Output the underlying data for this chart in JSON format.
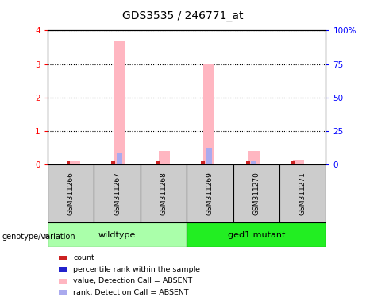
{
  "title": "GDS3535 / 246771_at",
  "samples": [
    "GSM311266",
    "GSM311267",
    "GSM311268",
    "GSM311269",
    "GSM311270",
    "GSM311271"
  ],
  "wildtype_label": "wildtype",
  "mutant_label": "ged1 mutant",
  "pink_bar_heights": [
    0.1,
    3.7,
    0.4,
    3.0,
    0.4,
    0.15
  ],
  "blue_bar_heights": [
    0.0,
    0.35,
    0.0,
    0.5,
    0.1,
    0.0
  ],
  "red_bar_heights": [
    0.1,
    0.1,
    0.1,
    0.1,
    0.1,
    0.1
  ],
  "ylim_left": [
    0,
    4
  ],
  "ylim_right": [
    0,
    100
  ],
  "yticks_left": [
    0,
    1,
    2,
    3,
    4
  ],
  "ytick_labels_right": [
    "0",
    "25",
    "50",
    "75",
    "100%"
  ],
  "pink_color": "#FFB6C1",
  "blue_color": "#AAAAEE",
  "red_color": "#CC2222",
  "blue_marker_color": "#2222CC",
  "bar_width": 0.25,
  "red_bar_width": 0.08,
  "group_label": "genotype/variation",
  "wildtype_color": "#AAFFAA",
  "mutant_color": "#22EE22",
  "sample_box_color": "#CCCCCC",
  "legend_items": [
    {
      "color": "#CC2222",
      "label": "count"
    },
    {
      "color": "#2222CC",
      "label": "percentile rank within the sample"
    },
    {
      "color": "#FFB6C1",
      "label": "value, Detection Call = ABSENT"
    },
    {
      "color": "#AAAAEE",
      "label": "rank, Detection Call = ABSENT"
    }
  ]
}
